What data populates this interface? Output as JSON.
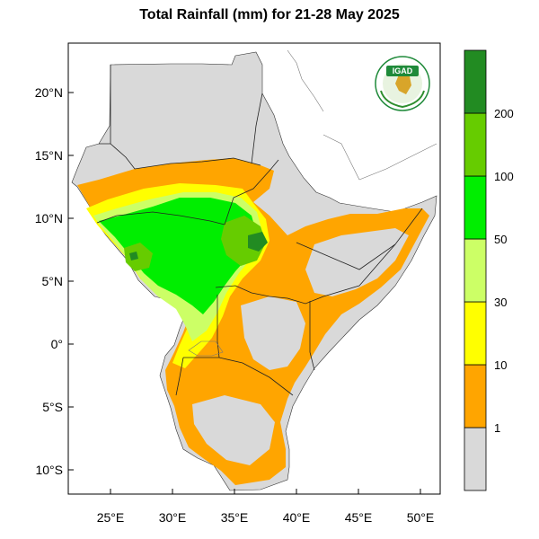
{
  "title": "Total Rainfall (mm) for 21-28 May 2025",
  "logo_text": "IGAD",
  "lat_ticks": [
    {
      "value": 20,
      "label": "20°N"
    },
    {
      "value": 15,
      "label": "15°N"
    },
    {
      "value": 10,
      "label": "10°N"
    },
    {
      "value": 5,
      "label": "5°N"
    },
    {
      "value": 0,
      "label": "0°"
    },
    {
      "value": -5,
      "label": "5°S"
    },
    {
      "value": -10,
      "label": "10°S"
    }
  ],
  "lon_ticks": [
    {
      "value": 25,
      "label": "25°E"
    },
    {
      "value": 30,
      "label": "30°E"
    },
    {
      "value": 35,
      "label": "35°E"
    },
    {
      "value": 40,
      "label": "40°E"
    },
    {
      "value": 45,
      "label": "45°E"
    },
    {
      "value": 50,
      "label": "50°E"
    }
  ],
  "colorbar": {
    "bins": [
      {
        "color": "#d9d9d9"
      },
      {
        "color": "#ffa500"
      },
      {
        "color": "#ffff00"
      },
      {
        "color": "#ccff66"
      },
      {
        "color": "#00ee00"
      },
      {
        "color": "#66cc00"
      },
      {
        "color": "#228b22"
      }
    ],
    "labels": [
      "1",
      "10",
      "30",
      "50",
      "100",
      "200"
    ]
  },
  "colors": {
    "no_rain": "#d9d9d9",
    "r1_10": "#ffa500",
    "r10_30": "#ffff00",
    "r30_50": "#ccff66",
    "r50_100": "#00ee00",
    "r100_200": "#66cc00",
    "r200_plus": "#228b22",
    "igad_logo_bg": "#1f8a3a"
  }
}
